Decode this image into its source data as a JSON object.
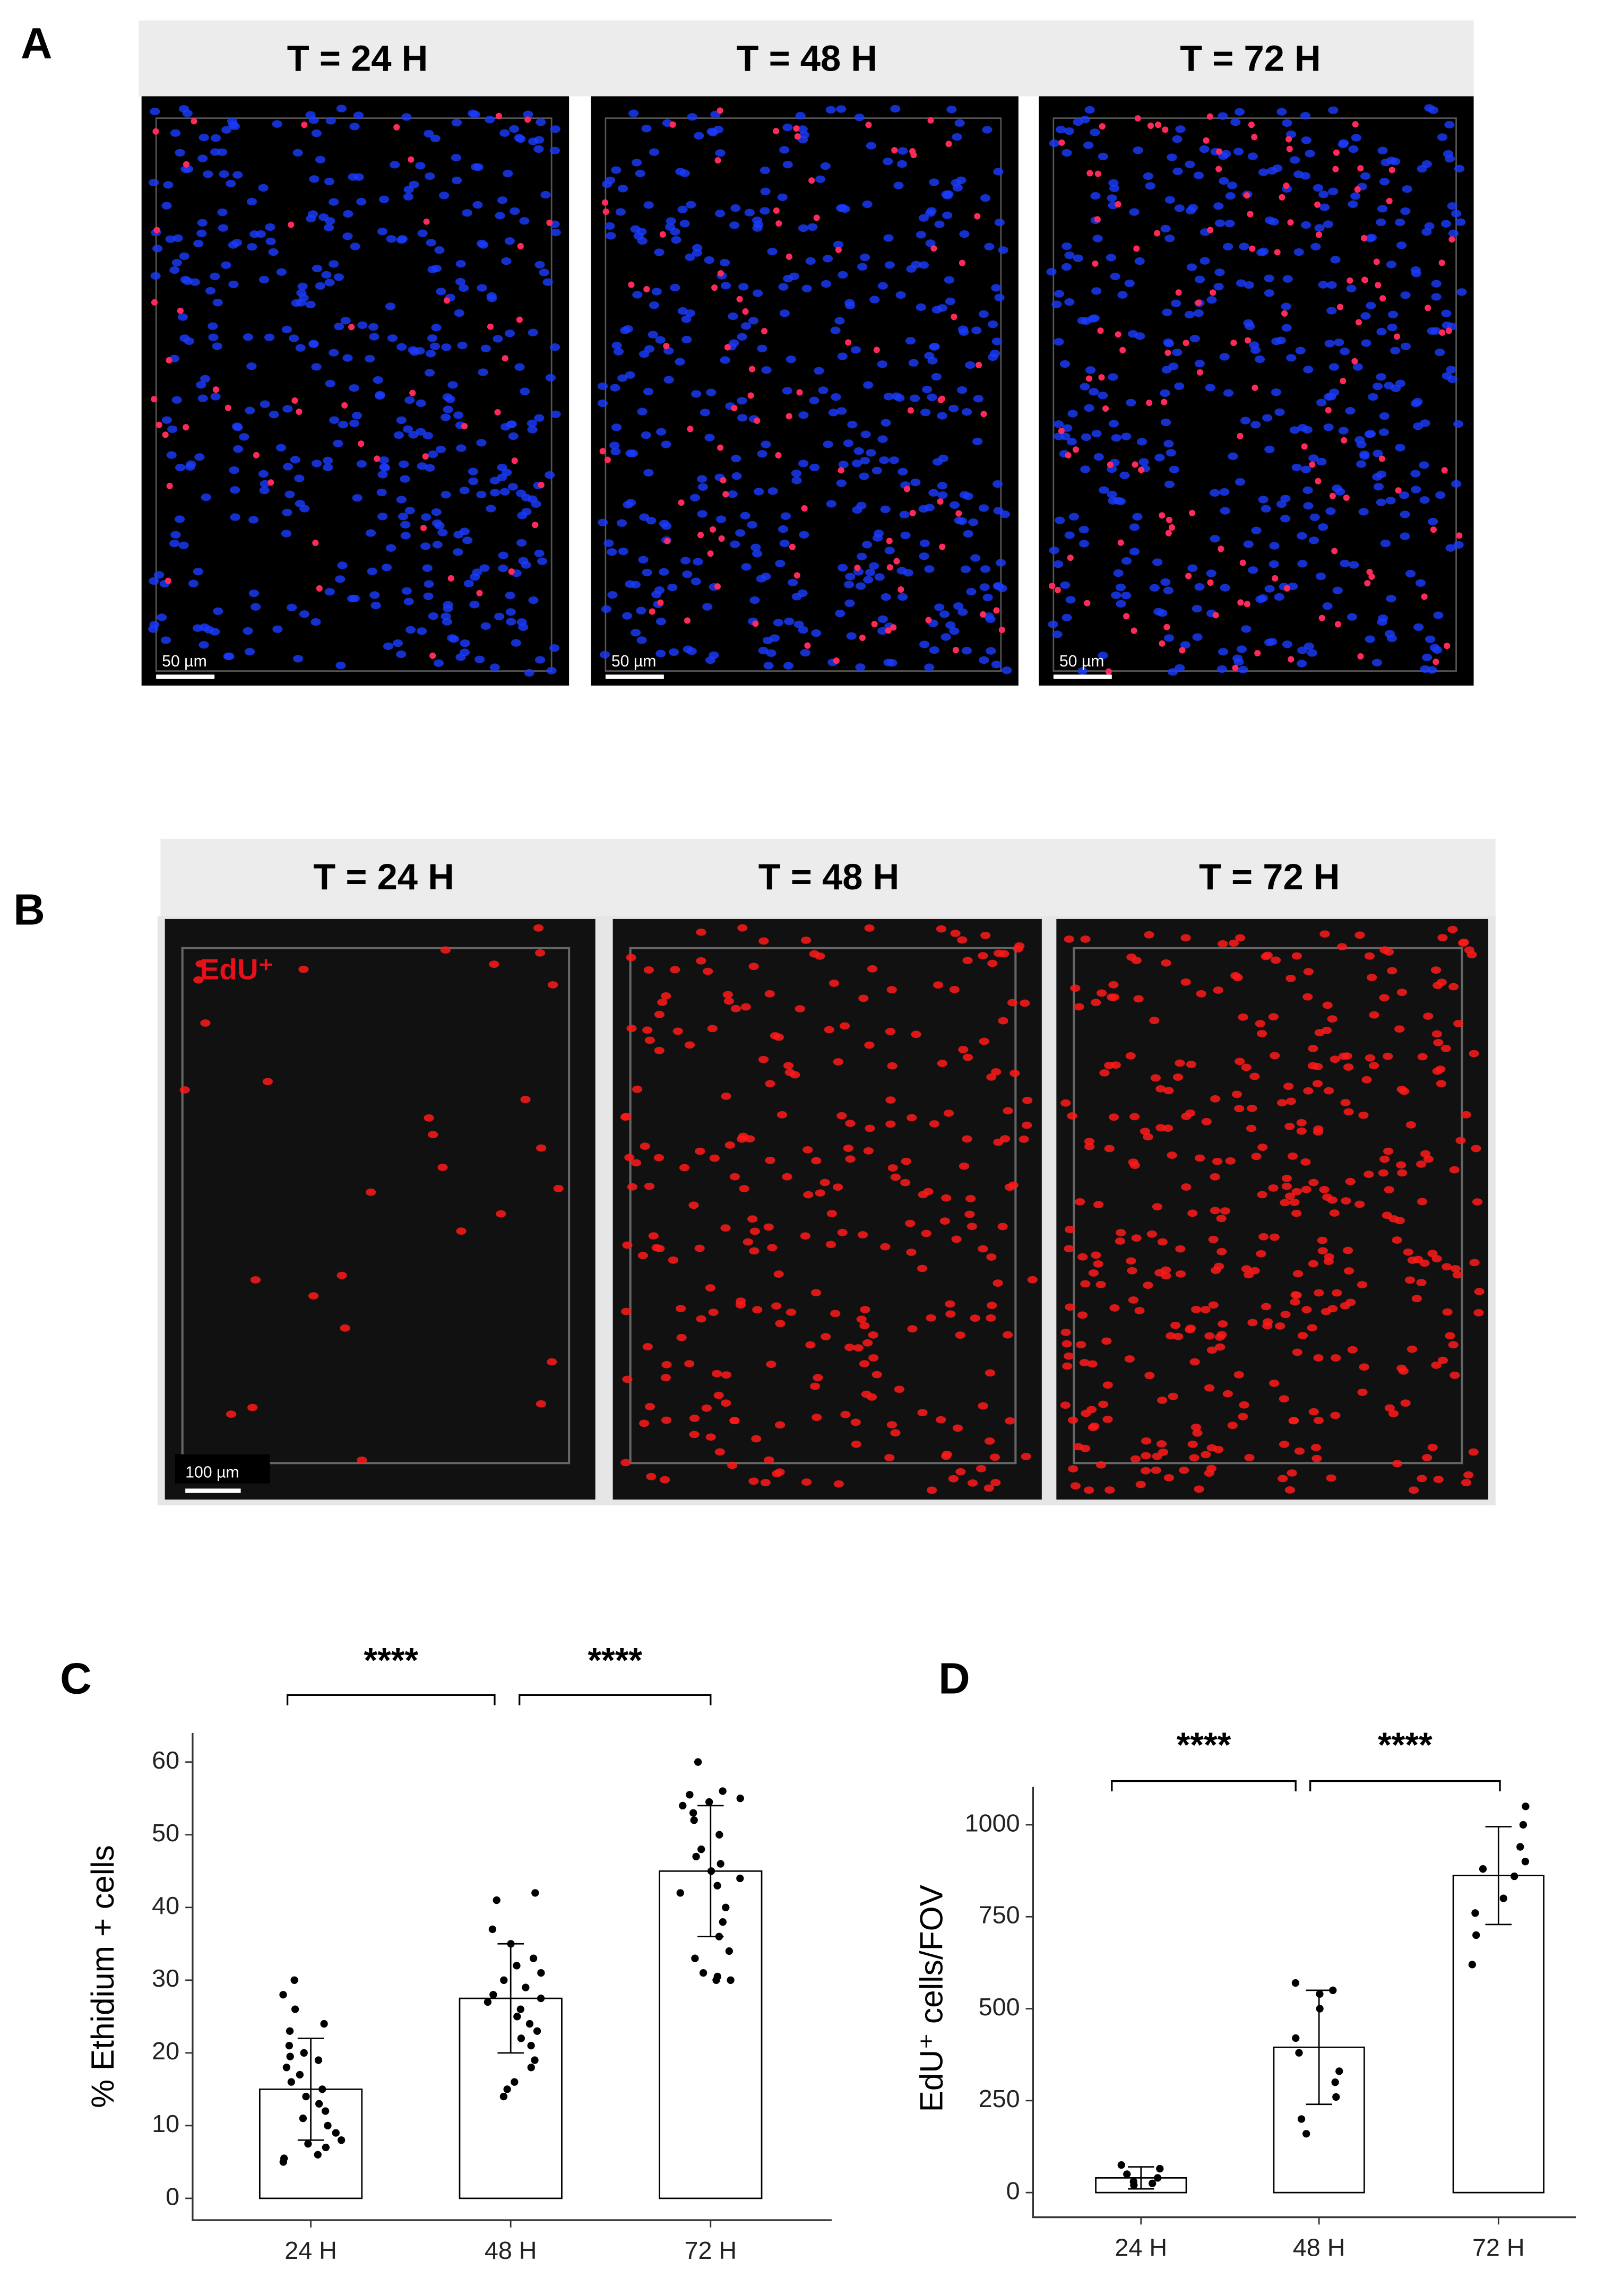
{
  "panels": {
    "a": {
      "label": "A",
      "titles": [
        "T = 24 H",
        "T = 48 H",
        "T = 72 H"
      ],
      "scale_bar": "50 µm"
    },
    "b": {
      "label": "B",
      "titles": [
        "T = 24 H",
        "T = 48 H",
        "T = 72 H"
      ],
      "scale_bar": "100 µm",
      "stain": "EdU⁺"
    },
    "c": {
      "label": "C"
    },
    "d": {
      "label": "D"
    }
  },
  "chart_data": [
    {
      "type": "bar",
      "ylabel": "% Ethidium + cells",
      "categories": [
        "24 H",
        "48 H",
        "72 H"
      ],
      "values": [
        15,
        27.5,
        45
      ],
      "errors": [
        7,
        7.5,
        9
      ],
      "points": [
        [
          30,
          28,
          26,
          24,
          23,
          21,
          20,
          19.5,
          19,
          18,
          17,
          16,
          15,
          14,
          13,
          12,
          11,
          10,
          9,
          8,
          7.5,
          7,
          6,
          5.5,
          5
        ],
        [
          42,
          41,
          37,
          35,
          33,
          32,
          31,
          30,
          29,
          28,
          27.5,
          27,
          26,
          25,
          24,
          23,
          22,
          21,
          19,
          18,
          16,
          15,
          14
        ],
        [
          60,
          56,
          55.5,
          55,
          54.5,
          54,
          53,
          52,
          50,
          48,
          47,
          46,
          45,
          44,
          43,
          42,
          40,
          38,
          36,
          34,
          33,
          31,
          30.5,
          30,
          30
        ]
      ],
      "color": "#ffffff",
      "ylim": [
        -3,
        64
      ],
      "yticks": [
        0,
        10,
        20,
        30,
        40,
        50,
        60
      ],
      "grid": false,
      "annotations": [
        "****",
        "****"
      ]
    },
    {
      "type": "bar",
      "ylabel": "EdU⁺ cells/FOV",
      "categories": [
        "24 H",
        "48 H",
        "72 H"
      ],
      "values": [
        40,
        395,
        862
      ],
      "errors": [
        30,
        155,
        133
      ],
      "points": [
        [
          75,
          65,
          50,
          40,
          30,
          25,
          20
        ],
        [
          570,
          550,
          540,
          500,
          420,
          380,
          330,
          300,
          260,
          200,
          160
        ],
        [
          1050,
          1000,
          940,
          900,
          880,
          860,
          800,
          760,
          700,
          620
        ]
      ],
      "color": "#ffffff",
      "ylim": [
        -67,
        1103
      ],
      "yticks": [
        0,
        250,
        500,
        750,
        1000
      ],
      "grid": false,
      "annotations": [
        "****",
        "****"
      ]
    }
  ]
}
